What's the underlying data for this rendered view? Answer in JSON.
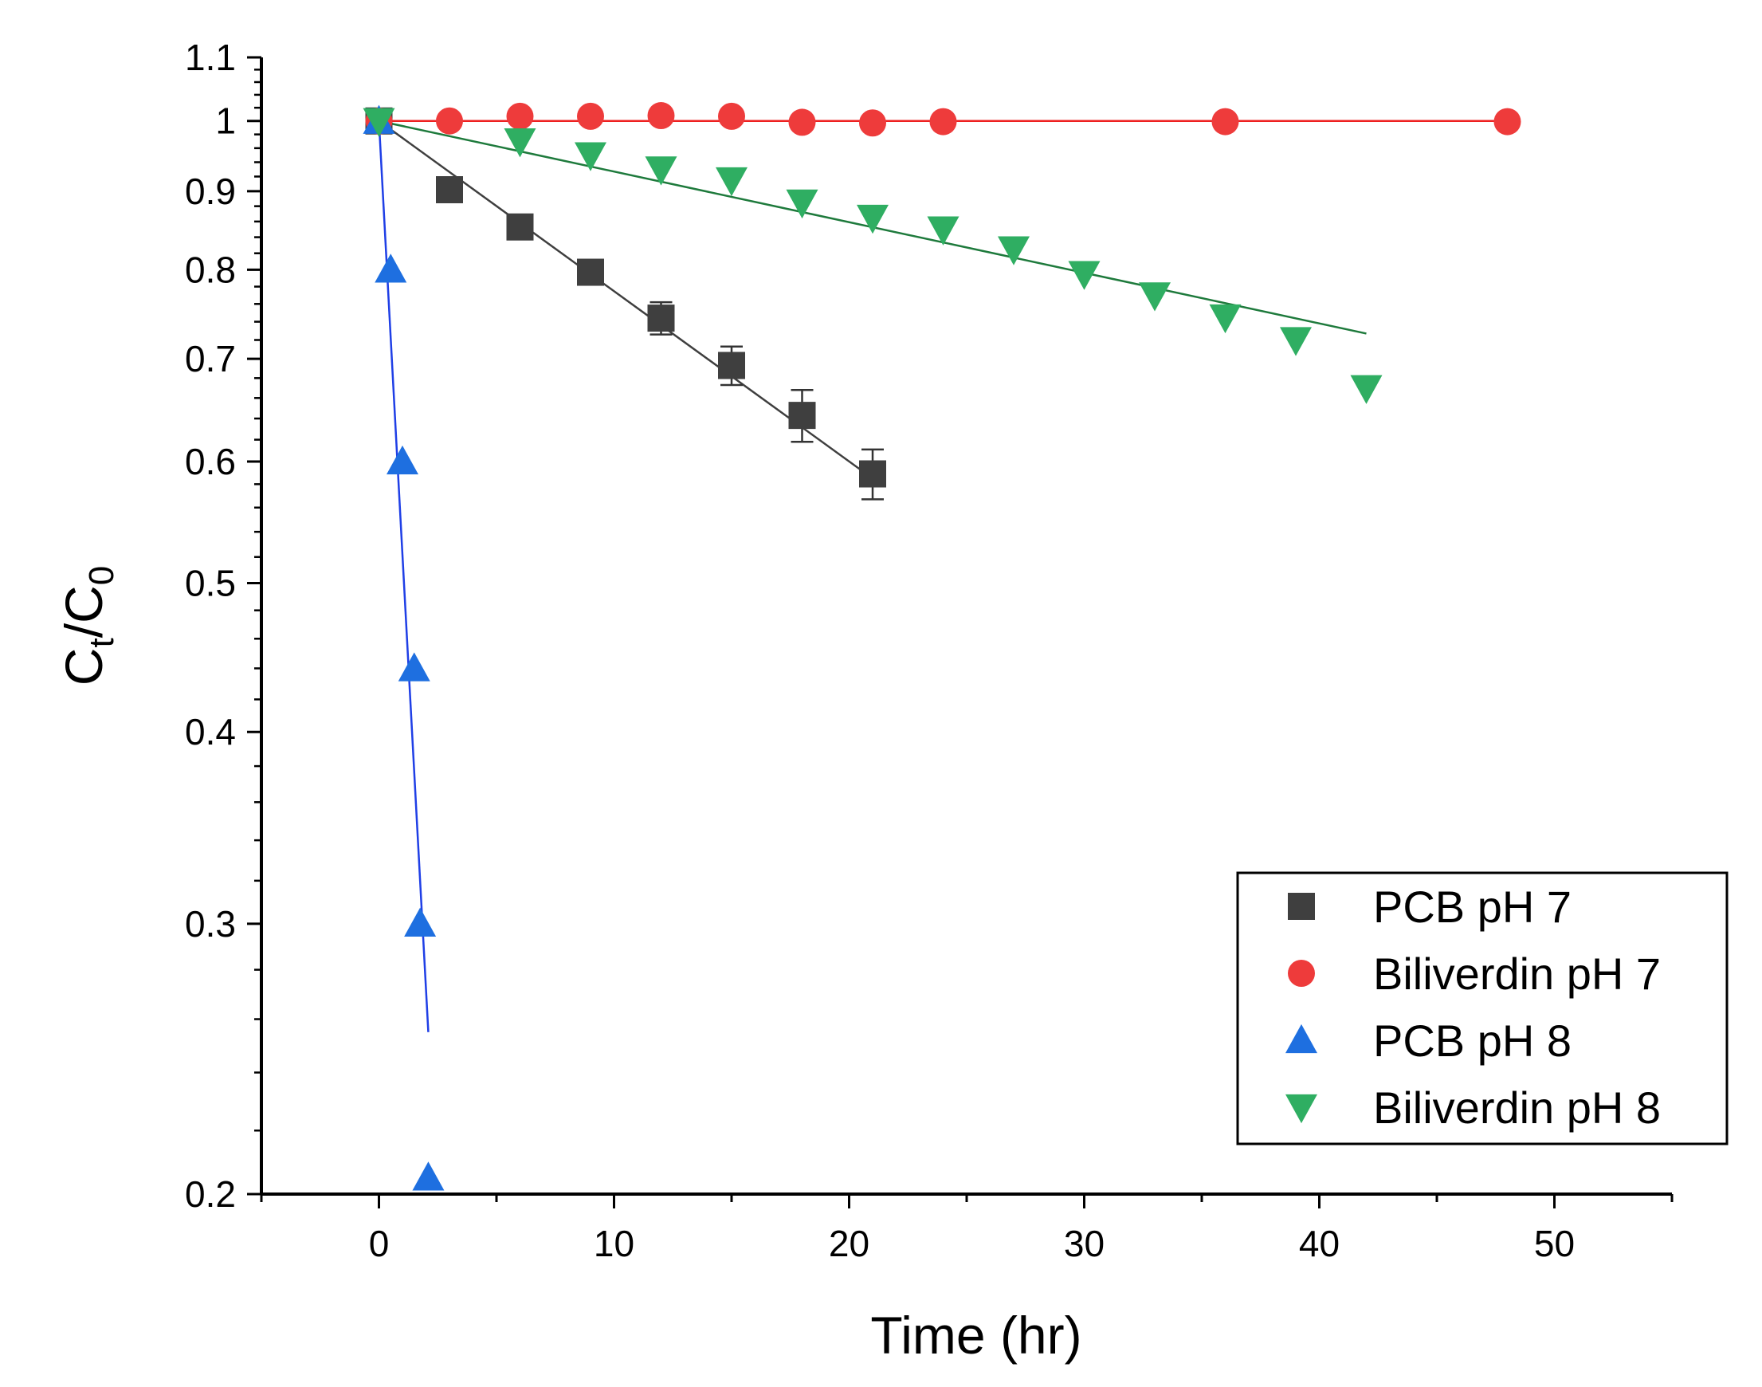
{
  "chart_data": {
    "type": "scatter",
    "title": "",
    "xlabel": "Time (hr)",
    "ylabel": {
      "main": "C",
      "sub1": "t",
      "sep": "/",
      "main2": "C",
      "sub2": "0"
    },
    "x_axis": {
      "range": [
        -5,
        55
      ],
      "ticks": [
        0,
        10,
        20,
        30,
        40,
        50
      ],
      "tick_labels": [
        "0",
        "10",
        "20",
        "30",
        "40",
        "50"
      ]
    },
    "y_axis": {
      "scale": "log",
      "range": [
        0.2,
        1.1
      ],
      "ticks": [
        0.2,
        0.3,
        0.4,
        0.5,
        0.6,
        0.7,
        0.8,
        0.9,
        1.0,
        1.1
      ],
      "tick_labels": [
        "0.2",
        "0.3",
        "0.4",
        "0.5",
        "0.6",
        "0.7",
        "0.8",
        "0.9",
        "1",
        "1.1"
      ]
    },
    "grid": false,
    "legend_position": "bottom-right",
    "series": [
      {
        "name": "PCB pH 7",
        "marker": "square",
        "color": "#3f3f3f",
        "x": [
          0,
          3,
          6,
          9,
          12,
          15,
          18,
          21
        ],
        "y": [
          1.0,
          0.902,
          0.853,
          0.797,
          0.744,
          0.693,
          0.643,
          0.589
        ],
        "error": [
          0,
          0.008,
          0.008,
          0.008,
          0.018,
          0.02,
          0.025,
          0.022
        ],
        "fit": {
          "x": [
            0,
            21
          ],
          "y": [
            1.0,
            0.585
          ],
          "color": "#3f3f3f"
        }
      },
      {
        "name": "Biliverdin pH 7",
        "marker": "circle",
        "color": "#ee3b3b",
        "x": [
          0,
          3,
          6,
          9,
          12,
          15,
          18,
          21,
          24,
          36,
          48
        ],
        "y": [
          1.0,
          1.0,
          1.007,
          1.007,
          1.008,
          1.007,
          0.998,
          0.997,
          0.999,
          0.999,
          0.999
        ],
        "fit": {
          "x": [
            0,
            48
          ],
          "y": [
            1.0,
            1.0
          ],
          "color": "#ee2020"
        }
      },
      {
        "name": "PCB pH 8",
        "marker": "triangle-up",
        "color": "#1e6fe0",
        "x": [
          0,
          0.5,
          1,
          1.5,
          1.75,
          2.1
        ],
        "y": [
          1.0,
          0.8,
          0.6,
          0.44,
          0.3,
          0.205
        ],
        "fit": {
          "x": [
            0,
            2.1
          ],
          "y": [
            1.0,
            0.255
          ],
          "color": "#1f3fe6"
        }
      },
      {
        "name": "Biliverdin pH 8",
        "marker": "triangle-down",
        "color": "#2fae62",
        "x": [
          0,
          6,
          9,
          12,
          15,
          18,
          21,
          24,
          27,
          30,
          33,
          36,
          39,
          42
        ],
        "y": [
          1.0,
          0.97,
          0.95,
          0.93,
          0.915,
          0.885,
          0.865,
          0.85,
          0.825,
          0.795,
          0.77,
          0.745,
          0.72,
          0.67
        ],
        "fit": {
          "x": [
            0,
            42
          ],
          "y": [
            1.0,
            0.727
          ],
          "color": "#1e7a3c"
        }
      }
    ]
  }
}
